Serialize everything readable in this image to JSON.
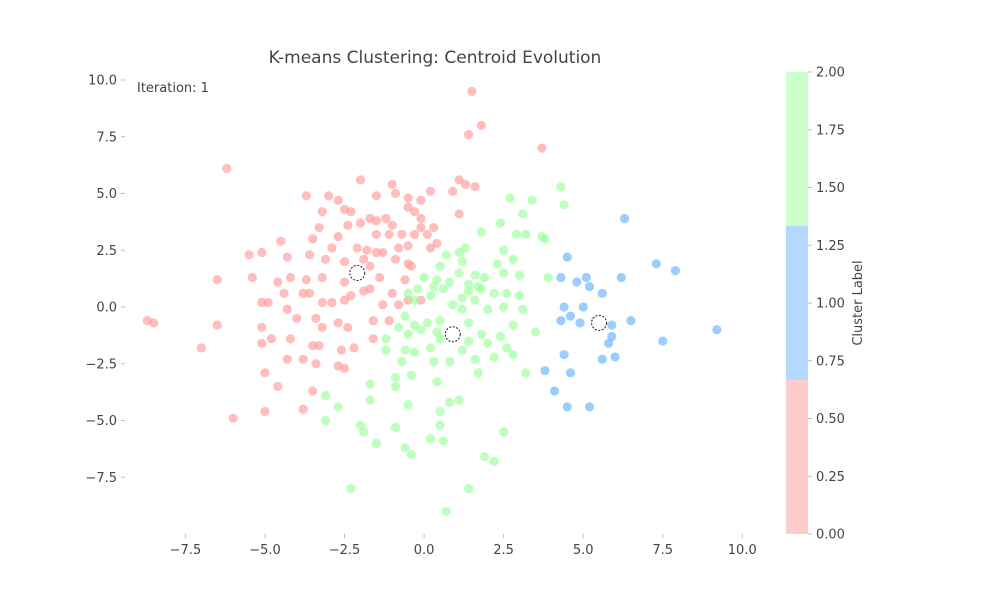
{
  "chart_data": {
    "type": "scatter",
    "title": "K-means Clustering: Centroid Evolution",
    "annotation": "Iteration: 1",
    "xlim": [
      -9.4,
      10.4
    ],
    "ylim": [
      -10.0,
      10.0
    ],
    "xticks": [
      -7.5,
      -5.0,
      -2.5,
      0.0,
      2.5,
      5.0,
      7.5,
      10.0
    ],
    "xtick_labels": [
      "−7.5",
      "−5.0",
      "−2.5",
      "0.0",
      "2.5",
      "5.0",
      "7.5",
      "10.0"
    ],
    "yticks": [
      -7.5,
      -5.0,
      -2.5,
      0.0,
      2.5,
      5.0,
      7.5,
      10.0
    ],
    "ytick_labels": [
      "−7.5",
      "−5.0",
      "−2.5",
      "0.0",
      "2.5",
      "5.0",
      "7.5",
      "10.0"
    ],
    "grid": false,
    "colorbar": {
      "label": "Cluster Label",
      "range": [
        0.0,
        2.0
      ],
      "ticks": [
        0.0,
        0.25,
        0.5,
        0.75,
        1.0,
        1.25,
        1.5,
        1.75,
        2.0
      ],
      "tick_labels": [
        "0.00",
        "0.25",
        "0.50",
        "0.75",
        "1.00",
        "1.25",
        "1.50",
        "1.75",
        "2.00"
      ],
      "colors": [
        "#ffcccc",
        "#b3d9ff",
        "#ccffcc"
      ]
    },
    "cluster_colors": [
      "#ff9999",
      "#66b3ff",
      "#99ff99"
    ],
    "centroids": [
      {
        "x": -2.1,
        "y": 1.5
      },
      {
        "x": 0.9,
        "y": -1.2
      },
      {
        "x": 5.5,
        "y": -0.7
      }
    ],
    "series": [
      {
        "cluster": 0,
        "points": [
          [
            1.5,
            9.5
          ],
          [
            1.8,
            8.0
          ],
          [
            1.4,
            7.6
          ],
          [
            3.7,
            7.0
          ],
          [
            -6.2,
            6.1
          ],
          [
            1.6,
            5.3
          ],
          [
            1.1,
            5.6
          ],
          [
            1.3,
            5.4
          ],
          [
            -2.0,
            5.6
          ],
          [
            -1.0,
            5.4
          ],
          [
            0.2,
            5.1
          ],
          [
            -3.7,
            4.9
          ],
          [
            -3.0,
            4.9
          ],
          [
            -2.7,
            4.7
          ],
          [
            -1.5,
            4.9
          ],
          [
            -0.9,
            5.0
          ],
          [
            -0.5,
            4.8
          ],
          [
            -0.1,
            4.7
          ],
          [
            0.9,
            5.1
          ],
          [
            -3.2,
            4.2
          ],
          [
            -2.5,
            4.3
          ],
          [
            -2.3,
            4.2
          ],
          [
            -0.5,
            4.4
          ],
          [
            -0.3,
            4.2
          ],
          [
            -0.1,
            3.9
          ],
          [
            1.1,
            4.1
          ],
          [
            -2.0,
            3.7
          ],
          [
            -1.7,
            3.9
          ],
          [
            -1.5,
            3.8
          ],
          [
            -1.2,
            3.9
          ],
          [
            -1.0,
            3.6
          ],
          [
            -3.3,
            3.5
          ],
          [
            -2.4,
            3.6
          ],
          [
            -0.1,
            3.5
          ],
          [
            0.3,
            3.5
          ],
          [
            -3.5,
            3.0
          ],
          [
            -2.7,
            3.1
          ],
          [
            -1.5,
            3.2
          ],
          [
            -1.1,
            3.2
          ],
          [
            -0.7,
            3.2
          ],
          [
            -0.3,
            3.2
          ],
          [
            0.1,
            3.2
          ],
          [
            -4.5,
            2.9
          ],
          [
            -2.9,
            2.6
          ],
          [
            -2.1,
            2.6
          ],
          [
            -1.8,
            2.5
          ],
          [
            -1.5,
            2.4
          ],
          [
            -1.3,
            2.4
          ],
          [
            -0.8,
            2.6
          ],
          [
            -0.5,
            2.7
          ],
          [
            0.2,
            2.6
          ],
          [
            0.4,
            2.8
          ],
          [
            -5.5,
            2.3
          ],
          [
            -5.1,
            2.4
          ],
          [
            -4.3,
            2.2
          ],
          [
            -3.6,
            2.3
          ],
          [
            -3.1,
            2.1
          ],
          [
            -2.5,
            2.0
          ],
          [
            -1.9,
            2.1
          ],
          [
            -1.7,
            1.8
          ],
          [
            -0.9,
            2.1
          ],
          [
            -0.5,
            1.9
          ],
          [
            -0.4,
            1.8
          ],
          [
            -6.5,
            1.2
          ],
          [
            -5.4,
            1.3
          ],
          [
            -4.6,
            1.1
          ],
          [
            -4.2,
            1.3
          ],
          [
            -3.7,
            1.2
          ],
          [
            -3.2,
            1.3
          ],
          [
            -2.5,
            1.1
          ],
          [
            -1.4,
            1.3
          ],
          [
            -0.6,
            1.2
          ],
          [
            -4.4,
            0.6
          ],
          [
            -3.8,
            0.6
          ],
          [
            -3.6,
            0.6
          ],
          [
            -2.3,
            0.5
          ],
          [
            -1.9,
            0.7
          ],
          [
            -1.7,
            0.8
          ],
          [
            -1.0,
            0.6
          ],
          [
            -0.5,
            0.3
          ],
          [
            -5.1,
            0.2
          ],
          [
            -4.9,
            0.2
          ],
          [
            -4.3,
            -0.1
          ],
          [
            -3.2,
            0.2
          ],
          [
            -2.9,
            0.2
          ],
          [
            -2.5,
            0.3
          ],
          [
            -1.3,
            0.1
          ],
          [
            -0.8,
            0.1
          ],
          [
            -0.1,
            0.3
          ],
          [
            -6.5,
            -0.8
          ],
          [
            -5.1,
            -0.9
          ],
          [
            -4.8,
            -1.4
          ],
          [
            -4.0,
            -0.5
          ],
          [
            -3.4,
            -0.5
          ],
          [
            -3.2,
            -0.9
          ],
          [
            -2.7,
            -0.7
          ],
          [
            -2.4,
            -0.9
          ],
          [
            -1.6,
            -0.6
          ],
          [
            -1.1,
            -0.6
          ],
          [
            -8.7,
            -0.6
          ],
          [
            -8.5,
            -0.7
          ],
          [
            -5.1,
            -1.6
          ],
          [
            -4.2,
            -1.4
          ],
          [
            -3.5,
            -1.7
          ],
          [
            -3.3,
            -1.7
          ],
          [
            -2.6,
            -1.9
          ],
          [
            -2.2,
            -1.8
          ],
          [
            -1.6,
            -1.4
          ],
          [
            -7.0,
            -1.8
          ],
          [
            -4.3,
            -2.3
          ],
          [
            -3.8,
            -2.3
          ],
          [
            -3.4,
            -2.5
          ],
          [
            -2.7,
            -2.6
          ],
          [
            -2.5,
            -2.7
          ],
          [
            -5.0,
            -2.9
          ],
          [
            -4.6,
            -3.5
          ],
          [
            -3.5,
            -3.7
          ],
          [
            -5.0,
            -4.6
          ],
          [
            -3.8,
            -4.5
          ],
          [
            -6.0,
            -4.9
          ]
        ]
      },
      {
        "cluster": 1,
        "points": [
          [
            6.3,
            3.9
          ],
          [
            4.5,
            2.2
          ],
          [
            7.3,
            1.9
          ],
          [
            7.9,
            1.6
          ],
          [
            4.3,
            1.3
          ],
          [
            5.1,
            1.3
          ],
          [
            6.2,
            1.3
          ],
          [
            4.8,
            1.1
          ],
          [
            5.2,
            0.9
          ],
          [
            5.6,
            0.6
          ],
          [
            4.4,
            0.0
          ],
          [
            5.0,
            0.0
          ],
          [
            4.6,
            -0.4
          ],
          [
            4.3,
            -0.6
          ],
          [
            4.9,
            -0.7
          ],
          [
            5.4,
            -0.6
          ],
          [
            5.9,
            -0.8
          ],
          [
            6.5,
            -0.6
          ],
          [
            9.2,
            -1.0
          ],
          [
            5.9,
            -1.3
          ],
          [
            5.8,
            -1.6
          ],
          [
            7.5,
            -1.5
          ],
          [
            6.0,
            -2.2
          ],
          [
            4.4,
            -2.1
          ],
          [
            5.6,
            -2.3
          ],
          [
            3.8,
            -2.8
          ],
          [
            4.6,
            -2.9
          ],
          [
            4.1,
            -3.7
          ],
          [
            4.5,
            -4.4
          ],
          [
            5.2,
            -4.4
          ]
        ]
      },
      {
        "cluster": 2,
        "points": [
          [
            4.3,
            5.3
          ],
          [
            2.7,
            4.8
          ],
          [
            3.4,
            4.7
          ],
          [
            4.4,
            4.5
          ],
          [
            3.1,
            4.1
          ],
          [
            2.4,
            3.7
          ],
          [
            2.9,
            3.2
          ],
          [
            3.2,
            3.2
          ],
          [
            1.8,
            3.3
          ],
          [
            3.7,
            3.1
          ],
          [
            3.8,
            3.0
          ],
          [
            1.3,
            2.6
          ],
          [
            2.5,
            2.5
          ],
          [
            1.1,
            2.4
          ],
          [
            0.7,
            2.3
          ],
          [
            1.2,
            2.0
          ],
          [
            2.8,
            2.1
          ],
          [
            2.3,
            1.9
          ],
          [
            0.5,
            1.8
          ],
          [
            1.1,
            1.5
          ],
          [
            1.6,
            1.4
          ],
          [
            2.5,
            1.5
          ],
          [
            1.9,
            1.3
          ],
          [
            3.0,
            1.4
          ],
          [
            3.9,
            1.3
          ],
          [
            0.0,
            1.3
          ],
          [
            0.4,
            1.2
          ],
          [
            0.8,
            1.1
          ],
          [
            1.4,
            1.0
          ],
          [
            1.7,
            0.9
          ],
          [
            -0.2,
            0.8
          ],
          [
            0.3,
            0.9
          ],
          [
            0.6,
            0.8
          ],
          [
            1.4,
            0.7
          ],
          [
            1.8,
            0.8
          ],
          [
            2.2,
            0.6
          ],
          [
            2.6,
            0.6
          ],
          [
            3.0,
            0.5
          ],
          [
            -0.5,
            0.6
          ],
          [
            0.2,
            0.5
          ],
          [
            1.2,
            0.4
          ],
          [
            1.6,
            0.3
          ],
          [
            -0.3,
            0.3
          ],
          [
            0.9,
            0.1
          ],
          [
            1.2,
            -0.1
          ],
          [
            2.0,
            -0.1
          ],
          [
            2.5,
            0.0
          ],
          [
            3.1,
            -0.1
          ],
          [
            -0.6,
            -0.4
          ],
          [
            -0.3,
            -0.8
          ],
          [
            0.1,
            -0.7
          ],
          [
            0.5,
            -0.6
          ],
          [
            1.4,
            -0.7
          ],
          [
            2.8,
            -0.8
          ],
          [
            -0.8,
            -0.9
          ],
          [
            -0.1,
            -1.0
          ],
          [
            0.4,
            -1.1
          ],
          [
            1.8,
            -1.2
          ],
          [
            2.4,
            -1.3
          ],
          [
            3.5,
            -1.1
          ],
          [
            -1.2,
            -1.4
          ],
          [
            -0.5,
            -1.2
          ],
          [
            0.5,
            -1.4
          ],
          [
            1.4,
            -1.5
          ],
          [
            2.0,
            -1.6
          ],
          [
            -1.2,
            -1.9
          ],
          [
            -0.6,
            -1.9
          ],
          [
            -0.3,
            -2.0
          ],
          [
            0.2,
            -1.8
          ],
          [
            1.2,
            -1.9
          ],
          [
            2.6,
            -1.8
          ],
          [
            2.8,
            -2.1
          ],
          [
            -0.7,
            -2.4
          ],
          [
            0.3,
            -2.4
          ],
          [
            0.8,
            -2.4
          ],
          [
            1.6,
            -2.3
          ],
          [
            2.2,
            -2.2
          ],
          [
            -0.9,
            -3.1
          ],
          [
            -0.4,
            -3.0
          ],
          [
            0.4,
            -3.3
          ],
          [
            -1.7,
            -3.4
          ],
          [
            -0.9,
            -3.5
          ],
          [
            1.7,
            -2.9
          ],
          [
            3.2,
            -2.9
          ],
          [
            -3.1,
            -3.9
          ],
          [
            -0.5,
            -4.3
          ],
          [
            0.8,
            -4.2
          ],
          [
            1.1,
            -4.1
          ],
          [
            -2.7,
            -4.4
          ],
          [
            -1.7,
            -4.1
          ],
          [
            0.5,
            -4.6
          ],
          [
            -3.1,
            -5.0
          ],
          [
            -2.0,
            -5.2
          ],
          [
            -1.9,
            -5.5
          ],
          [
            -0.9,
            -5.3
          ],
          [
            0.5,
            -5.2
          ],
          [
            2.5,
            -5.5
          ],
          [
            0.2,
            -5.8
          ],
          [
            0.6,
            -5.9
          ],
          [
            -1.5,
            -6.0
          ],
          [
            -0.6,
            -6.2
          ],
          [
            -0.4,
            -6.5
          ],
          [
            1.9,
            -6.6
          ],
          [
            2.2,
            -6.8
          ],
          [
            -2.3,
            -8.0
          ],
          [
            1.4,
            -8.0
          ],
          [
            0.7,
            -9.0
          ]
        ]
      }
    ]
  }
}
